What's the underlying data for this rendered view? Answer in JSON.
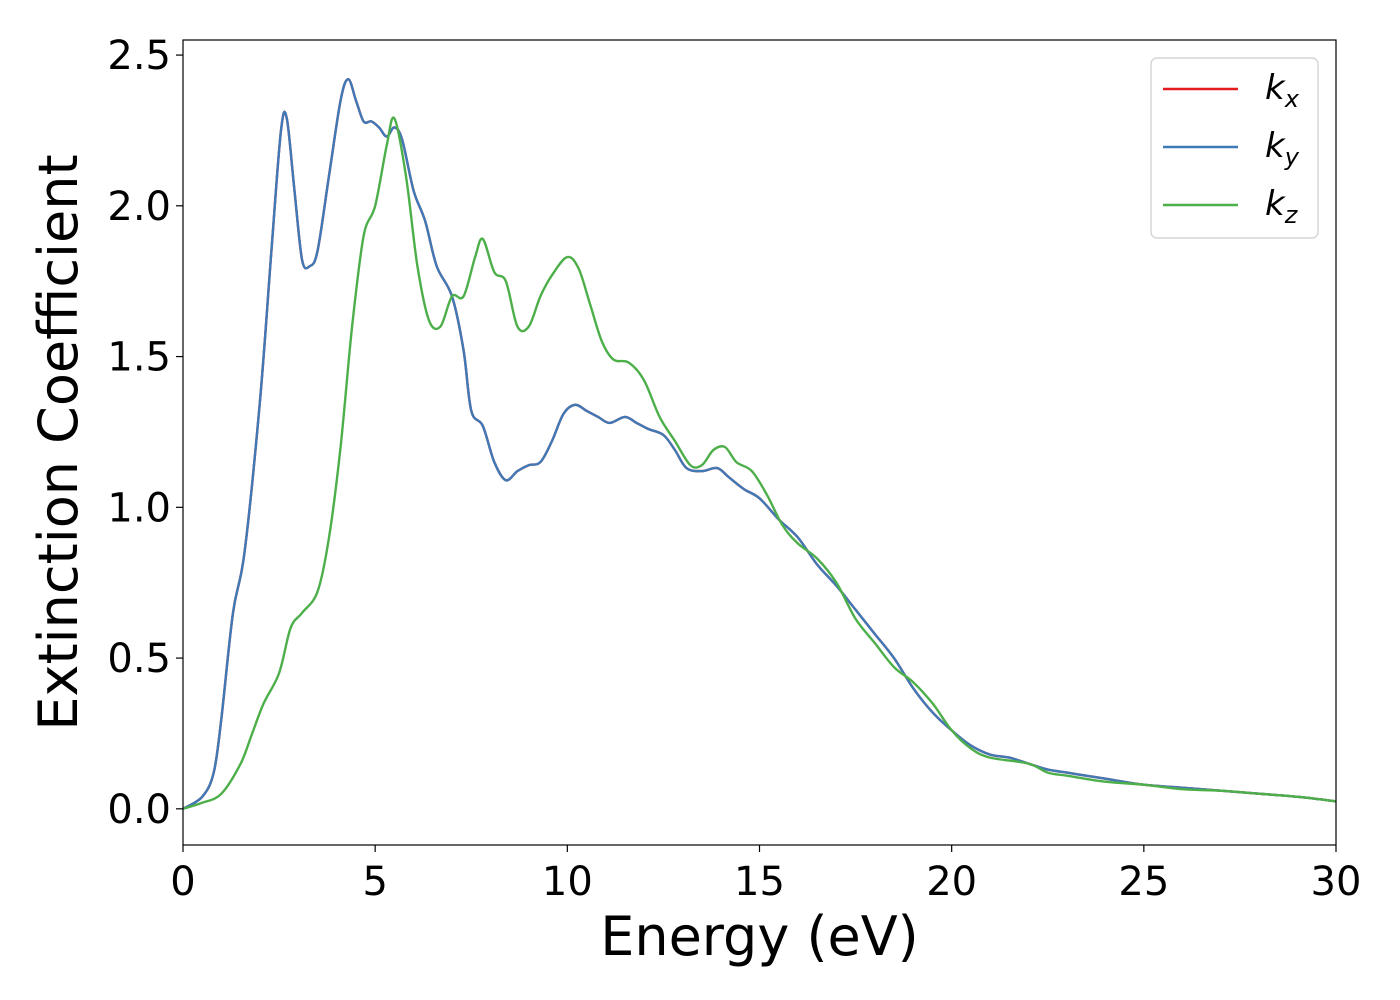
{
  "chart_data": {
    "type": "line",
    "xlabel": "Energy (eV)",
    "ylabel": "Extinction Coefficient",
    "xlim": [
      0,
      30
    ],
    "ylim": [
      -0.12,
      2.55
    ],
    "xticks": [
      0,
      5,
      10,
      15,
      20,
      25,
      30
    ],
    "xtick_labels": [
      "0",
      "5",
      "10",
      "15",
      "20",
      "25",
      "30"
    ],
    "yticks": [
      0.0,
      0.5,
      1.0,
      1.5,
      2.0,
      2.5
    ],
    "ytick_labels": [
      "0.0",
      "0.5",
      "1.0",
      "1.5",
      "2.0",
      "2.5"
    ],
    "grid": false,
    "legend_position": "top-right",
    "series": [
      {
        "name": "kx",
        "label_main": "k",
        "label_sub": "x",
        "color": "#e41a1c",
        "points": [
          [
            0,
            0
          ],
          [
            0.5,
            0.04
          ],
          [
            0.8,
            0.12
          ],
          [
            1.0,
            0.3
          ],
          [
            1.3,
            0.65
          ],
          [
            1.6,
            0.85
          ],
          [
            2.0,
            1.35
          ],
          [
            2.3,
            1.85
          ],
          [
            2.55,
            2.25
          ],
          [
            2.7,
            2.29
          ],
          [
            2.9,
            2.05
          ],
          [
            3.1,
            1.82
          ],
          [
            3.3,
            1.8
          ],
          [
            3.5,
            1.85
          ],
          [
            3.8,
            2.1
          ],
          [
            4.1,
            2.35
          ],
          [
            4.3,
            2.42
          ],
          [
            4.5,
            2.35
          ],
          [
            4.7,
            2.28
          ],
          [
            4.9,
            2.28
          ],
          [
            5.1,
            2.26
          ],
          [
            5.3,
            2.23
          ],
          [
            5.5,
            2.26
          ],
          [
            5.7,
            2.22
          ],
          [
            6.0,
            2.05
          ],
          [
            6.3,
            1.95
          ],
          [
            6.6,
            1.8
          ],
          [
            7.0,
            1.7
          ],
          [
            7.3,
            1.52
          ],
          [
            7.5,
            1.32
          ],
          [
            7.8,
            1.27
          ],
          [
            8.1,
            1.15
          ],
          [
            8.4,
            1.09
          ],
          [
            8.7,
            1.12
          ],
          [
            9.0,
            1.14
          ],
          [
            9.3,
            1.15
          ],
          [
            9.6,
            1.22
          ],
          [
            9.9,
            1.31
          ],
          [
            10.2,
            1.34
          ],
          [
            10.5,
            1.32
          ],
          [
            10.8,
            1.3
          ],
          [
            11.1,
            1.28
          ],
          [
            11.5,
            1.3
          ],
          [
            11.8,
            1.28
          ],
          [
            12.1,
            1.26
          ],
          [
            12.5,
            1.24
          ],
          [
            12.8,
            1.19
          ],
          [
            13.1,
            1.13
          ],
          [
            13.5,
            1.12
          ],
          [
            13.9,
            1.13
          ],
          [
            14.2,
            1.1
          ],
          [
            14.6,
            1.06
          ],
          [
            15.0,
            1.03
          ],
          [
            15.5,
            0.96
          ],
          [
            16.0,
            0.9
          ],
          [
            16.5,
            0.81
          ],
          [
            17.0,
            0.74
          ],
          [
            17.5,
            0.66
          ],
          [
            18.0,
            0.58
          ],
          [
            18.5,
            0.5
          ],
          [
            19.0,
            0.4
          ],
          [
            19.5,
            0.32
          ],
          [
            20.0,
            0.26
          ],
          [
            20.5,
            0.21
          ],
          [
            21.0,
            0.18
          ],
          [
            21.5,
            0.17
          ],
          [
            22.0,
            0.15
          ],
          [
            22.5,
            0.13
          ],
          [
            23.0,
            0.12
          ],
          [
            23.5,
            0.11
          ],
          [
            24.0,
            0.1
          ],
          [
            25.0,
            0.08
          ],
          [
            26.0,
            0.07
          ],
          [
            27.0,
            0.06
          ],
          [
            28.0,
            0.05
          ],
          [
            29.0,
            0.04
          ],
          [
            30.0,
            0.025
          ]
        ]
      },
      {
        "name": "ky",
        "label_main": "k",
        "label_sub": "y",
        "color": "#3f79b6",
        "points": [
          [
            0,
            0
          ],
          [
            0.5,
            0.04
          ],
          [
            0.8,
            0.12
          ],
          [
            1.0,
            0.3
          ],
          [
            1.3,
            0.65
          ],
          [
            1.6,
            0.85
          ],
          [
            2.0,
            1.35
          ],
          [
            2.3,
            1.85
          ],
          [
            2.55,
            2.25
          ],
          [
            2.7,
            2.29
          ],
          [
            2.9,
            2.05
          ],
          [
            3.1,
            1.82
          ],
          [
            3.3,
            1.8
          ],
          [
            3.5,
            1.85
          ],
          [
            3.8,
            2.1
          ],
          [
            4.1,
            2.35
          ],
          [
            4.3,
            2.42
          ],
          [
            4.5,
            2.35
          ],
          [
            4.7,
            2.28
          ],
          [
            4.9,
            2.28
          ],
          [
            5.1,
            2.26
          ],
          [
            5.3,
            2.23
          ],
          [
            5.5,
            2.26
          ],
          [
            5.7,
            2.22
          ],
          [
            6.0,
            2.05
          ],
          [
            6.3,
            1.95
          ],
          [
            6.6,
            1.8
          ],
          [
            7.0,
            1.7
          ],
          [
            7.3,
            1.52
          ],
          [
            7.5,
            1.32
          ],
          [
            7.8,
            1.27
          ],
          [
            8.1,
            1.15
          ],
          [
            8.4,
            1.09
          ],
          [
            8.7,
            1.12
          ],
          [
            9.0,
            1.14
          ],
          [
            9.3,
            1.15
          ],
          [
            9.6,
            1.22
          ],
          [
            9.9,
            1.31
          ],
          [
            10.2,
            1.34
          ],
          [
            10.5,
            1.32
          ],
          [
            10.8,
            1.3
          ],
          [
            11.1,
            1.28
          ],
          [
            11.5,
            1.3
          ],
          [
            11.8,
            1.28
          ],
          [
            12.1,
            1.26
          ],
          [
            12.5,
            1.24
          ],
          [
            12.8,
            1.19
          ],
          [
            13.1,
            1.13
          ],
          [
            13.5,
            1.12
          ],
          [
            13.9,
            1.13
          ],
          [
            14.2,
            1.1
          ],
          [
            14.6,
            1.06
          ],
          [
            15.0,
            1.03
          ],
          [
            15.5,
            0.96
          ],
          [
            16.0,
            0.9
          ],
          [
            16.5,
            0.81
          ],
          [
            17.0,
            0.74
          ],
          [
            17.5,
            0.66
          ],
          [
            18.0,
            0.58
          ],
          [
            18.5,
            0.5
          ],
          [
            19.0,
            0.4
          ],
          [
            19.5,
            0.32
          ],
          [
            20.0,
            0.26
          ],
          [
            20.5,
            0.21
          ],
          [
            21.0,
            0.18
          ],
          [
            21.5,
            0.17
          ],
          [
            22.0,
            0.15
          ],
          [
            22.5,
            0.13
          ],
          [
            23.0,
            0.12
          ],
          [
            23.5,
            0.11
          ],
          [
            24.0,
            0.1
          ],
          [
            25.0,
            0.08
          ],
          [
            26.0,
            0.07
          ],
          [
            27.0,
            0.06
          ],
          [
            28.0,
            0.05
          ],
          [
            29.0,
            0.04
          ],
          [
            30.0,
            0.025
          ]
        ]
      },
      {
        "name": "kz",
        "label_main": "k",
        "label_sub": "z",
        "color": "#4daf4a",
        "points": [
          [
            0,
            0
          ],
          [
            0.5,
            0.02
          ],
          [
            1.0,
            0.05
          ],
          [
            1.5,
            0.15
          ],
          [
            1.8,
            0.25
          ],
          [
            2.1,
            0.35
          ],
          [
            2.5,
            0.45
          ],
          [
            2.8,
            0.6
          ],
          [
            3.1,
            0.65
          ],
          [
            3.5,
            0.72
          ],
          [
            3.8,
            0.9
          ],
          [
            4.1,
            1.2
          ],
          [
            4.4,
            1.6
          ],
          [
            4.7,
            1.9
          ],
          [
            5.0,
            2.0
          ],
          [
            5.3,
            2.2
          ],
          [
            5.5,
            2.29
          ],
          [
            5.8,
            2.1
          ],
          [
            6.1,
            1.8
          ],
          [
            6.4,
            1.62
          ],
          [
            6.7,
            1.6
          ],
          [
            7.0,
            1.7
          ],
          [
            7.3,
            1.7
          ],
          [
            7.6,
            1.83
          ],
          [
            7.8,
            1.89
          ],
          [
            8.1,
            1.78
          ],
          [
            8.4,
            1.75
          ],
          [
            8.7,
            1.6
          ],
          [
            9.0,
            1.6
          ],
          [
            9.3,
            1.7
          ],
          [
            9.6,
            1.77
          ],
          [
            10.0,
            1.83
          ],
          [
            10.3,
            1.79
          ],
          [
            10.6,
            1.67
          ],
          [
            10.9,
            1.55
          ],
          [
            11.2,
            1.49
          ],
          [
            11.6,
            1.48
          ],
          [
            12.0,
            1.42
          ],
          [
            12.4,
            1.3
          ],
          [
            12.8,
            1.22
          ],
          [
            13.2,
            1.14
          ],
          [
            13.5,
            1.14
          ],
          [
            13.8,
            1.19
          ],
          [
            14.1,
            1.2
          ],
          [
            14.4,
            1.15
          ],
          [
            14.8,
            1.12
          ],
          [
            15.2,
            1.04
          ],
          [
            15.6,
            0.94
          ],
          [
            16.0,
            0.88
          ],
          [
            16.5,
            0.83
          ],
          [
            17.0,
            0.75
          ],
          [
            17.5,
            0.63
          ],
          [
            18.0,
            0.55
          ],
          [
            18.5,
            0.47
          ],
          [
            19.0,
            0.42
          ],
          [
            19.5,
            0.35
          ],
          [
            20.0,
            0.26
          ],
          [
            20.5,
            0.2
          ],
          [
            21.0,
            0.17
          ],
          [
            22.0,
            0.15
          ],
          [
            22.5,
            0.12
          ],
          [
            23.0,
            0.11
          ],
          [
            24.0,
            0.09
          ],
          [
            25.0,
            0.08
          ],
          [
            26.0,
            0.065
          ],
          [
            27.0,
            0.06
          ],
          [
            28.0,
            0.05
          ],
          [
            29.0,
            0.04
          ],
          [
            30.0,
            0.025
          ]
        ]
      }
    ]
  }
}
